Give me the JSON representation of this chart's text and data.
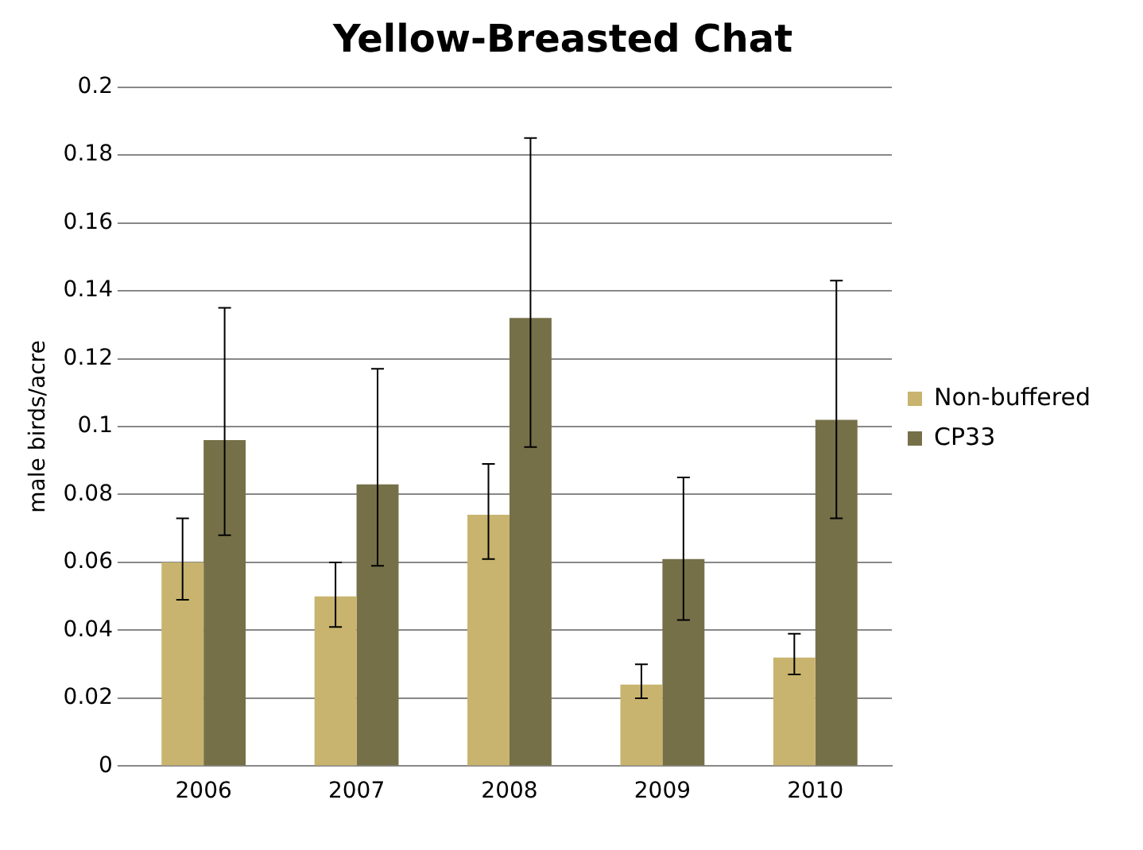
{
  "chart_data": {
    "type": "bar",
    "title": "Yellow-Breasted Chat",
    "ylabel": "male birds/acre",
    "categories": [
      "2006",
      "2007",
      "2008",
      "2009",
      "2010"
    ],
    "series": [
      {
        "name": "Non-buffered",
        "color": "#c8b46e",
        "values": [
          0.06,
          0.05,
          0.074,
          0.024,
          0.032
        ],
        "errors": [
          [
            0.049,
            0.073
          ],
          [
            0.041,
            0.06
          ],
          [
            0.061,
            0.089
          ],
          [
            0.02,
            0.03
          ],
          [
            0.027,
            0.039
          ]
        ]
      },
      {
        "name": "CP33",
        "color": "#767048",
        "values": [
          0.096,
          0.083,
          0.132,
          0.061,
          0.102
        ],
        "errors": [
          [
            0.068,
            0.135
          ],
          [
            0.059,
            0.117
          ],
          [
            0.094,
            0.185
          ],
          [
            0.043,
            0.085
          ],
          [
            0.073,
            0.143
          ]
        ]
      }
    ],
    "ylim": [
      0,
      0.2
    ],
    "yticks": [
      0,
      0.02,
      0.04,
      0.06,
      0.08,
      0.1,
      0.12,
      0.14,
      0.16,
      0.18,
      0.2
    ],
    "grid": "y",
    "legend": "right"
  }
}
